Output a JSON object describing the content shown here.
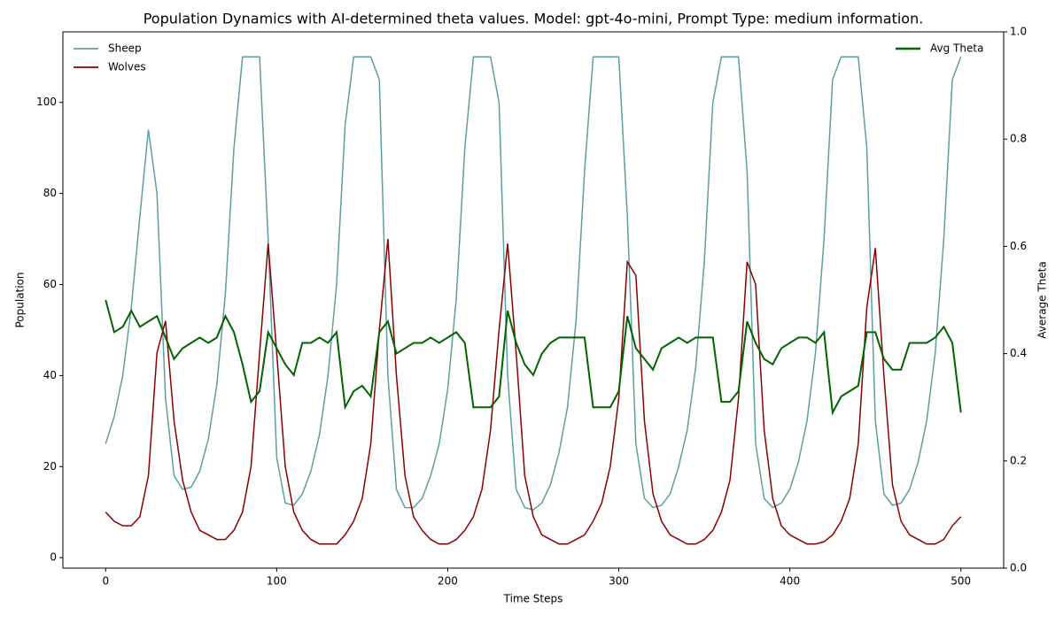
{
  "chart_data": {
    "type": "line",
    "title": "Population Dynamics with AI-determined theta values. Model: gpt-4o-mini, Prompt Type: medium information.",
    "xlabel": "Time Steps",
    "ylabel": "Population",
    "y2label": "Average Theta",
    "x": [
      0,
      5,
      10,
      15,
      20,
      25,
      30,
      35,
      40,
      45,
      50,
      55,
      60,
      65,
      70,
      75,
      80,
      85,
      90,
      95,
      100,
      105,
      110,
      115,
      120,
      125,
      130,
      135,
      140,
      145,
      150,
      155,
      160,
      165,
      170,
      175,
      180,
      185,
      190,
      195,
      200,
      205,
      210,
      215,
      220,
      225,
      230,
      235,
      240,
      245,
      250,
      255,
      260,
      265,
      270,
      275,
      280,
      285,
      290,
      295,
      300,
      305,
      310,
      315,
      320,
      325,
      330,
      335,
      340,
      345,
      350,
      355,
      360,
      365,
      370,
      375,
      380,
      385,
      390,
      395,
      400,
      405,
      410,
      415,
      420,
      425,
      430,
      435,
      440,
      445,
      450,
      455,
      460,
      465,
      470,
      475,
      480,
      485,
      490,
      495,
      500
    ],
    "series": [
      {
        "name": "Sheep",
        "color": "#5f9ea0",
        "values": [
          25,
          31,
          40,
          55,
          75,
          94,
          80,
          35,
          18,
          15,
          15.5,
          19,
          26,
          38,
          58,
          90,
          110,
          110,
          110,
          70,
          22,
          12,
          11.5,
          14,
          19,
          27,
          40,
          60,
          95,
          110,
          110,
          110,
          105,
          40,
          15,
          11,
          11,
          13,
          18,
          25,
          37,
          57,
          90,
          110,
          110,
          110,
          100,
          40,
          15,
          11,
          10.5,
          12,
          16,
          23,
          33,
          52,
          85,
          110,
          110,
          110,
          110,
          75,
          25,
          13,
          11,
          11.5,
          14,
          20,
          28,
          42,
          65,
          100,
          110,
          110,
          110,
          85,
          25,
          13,
          11,
          12,
          15,
          21,
          30,
          45,
          70,
          105,
          110,
          110,
          110,
          90,
          30,
          14,
          11.5,
          12,
          15,
          21,
          30,
          45,
          70,
          105,
          110
        ]
      },
      {
        "name": "Wolves",
        "color": "#8b0000",
        "values": [
          10,
          8,
          7,
          7,
          9,
          18,
          45,
          52,
          30,
          17,
          10,
          6,
          5,
          4,
          4,
          6,
          10,
          20,
          45,
          69,
          45,
          20,
          10,
          6,
          4,
          3,
          3,
          3,
          5,
          8,
          13,
          25,
          50,
          70,
          40,
          18,
          9,
          6,
          4,
          3,
          3,
          4,
          6,
          9,
          15,
          28,
          50,
          69,
          45,
          18,
          9,
          5,
          4,
          3,
          3,
          4,
          5,
          8,
          12,
          20,
          35,
          65,
          62,
          30,
          14,
          8,
          5,
          4,
          3,
          3,
          4,
          6,
          10,
          17,
          35,
          65,
          60,
          28,
          13,
          7,
          5,
          4,
          3,
          3,
          3.5,
          5,
          8,
          13,
          25,
          55,
          68,
          40,
          16,
          8,
          5,
          4,
          3,
          3,
          4,
          7,
          9
        ]
      },
      {
        "name": "Avg Theta",
        "color": "#006400",
        "axis": "y2",
        "values": [
          0.5,
          0.44,
          0.45,
          0.48,
          0.45,
          0.46,
          0.47,
          0.43,
          0.39,
          0.41,
          0.42,
          0.43,
          0.42,
          0.43,
          0.47,
          0.44,
          0.38,
          0.31,
          0.33,
          0.44,
          0.41,
          0.38,
          0.36,
          0.42,
          0.42,
          0.43,
          0.42,
          0.44,
          0.3,
          0.33,
          0.34,
          0.32,
          0.44,
          0.46,
          0.4,
          0.41,
          0.42,
          0.42,
          0.43,
          0.42,
          0.43,
          0.44,
          0.42,
          0.3,
          0.3,
          0.3,
          0.32,
          0.48,
          0.42,
          0.38,
          0.36,
          0.4,
          0.42,
          0.43,
          0.43,
          0.43,
          0.43,
          0.3,
          0.3,
          0.3,
          0.33,
          0.47,
          0.41,
          0.39,
          0.37,
          0.41,
          0.42,
          0.43,
          0.42,
          0.43,
          0.43,
          0.43,
          0.31,
          0.31,
          0.33,
          0.46,
          0.42,
          0.39,
          0.38,
          0.41,
          0.42,
          0.43,
          0.43,
          0.42,
          0.44,
          0.29,
          0.32,
          0.33,
          0.34,
          0.44,
          0.44,
          0.39,
          0.37,
          0.37,
          0.42,
          0.42,
          0.42,
          0.43,
          0.45,
          0.42,
          0.29
        ]
      }
    ],
    "xlim": [
      -25,
      525
    ],
    "xticks": [
      0,
      100,
      200,
      300,
      400,
      500
    ],
    "ylim": [
      -2.3,
      115.5
    ],
    "yticks": [
      0,
      20,
      40,
      60,
      80,
      100
    ],
    "y2lim": [
      0,
      1
    ],
    "y2ticks": [
      {
        "value": 0,
        "label": "0.0"
      },
      {
        "value": 0.2,
        "label": "0.2"
      },
      {
        "value": 0.4,
        "label": "0.4"
      },
      {
        "value": 0.6,
        "label": "0.6"
      },
      {
        "value": 0.8,
        "label": "0.8"
      },
      {
        "value": 1,
        "label": "1.0"
      }
    ],
    "legend": "upper left",
    "y2_legend": "upper right"
  }
}
